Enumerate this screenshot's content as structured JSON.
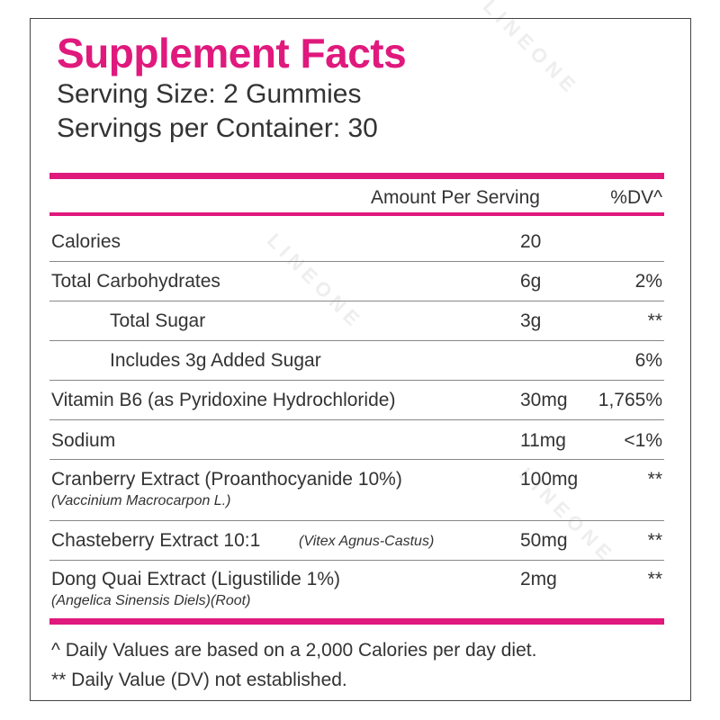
{
  "title": "Supplement Facts",
  "serving_size": "Serving Size: 2 Gummies",
  "servings_per_container": "Servings per Container: 30",
  "header": {
    "amount": "Amount Per Serving",
    "dv": "%DV^"
  },
  "rows": [
    {
      "name": "Calories",
      "amount": "20"
    },
    {
      "name": "Total Carbohydrates",
      "amount": "6g",
      "dv": "2%"
    },
    {
      "name": "Total Sugar",
      "amount": "3g",
      "dv": "**"
    },
    {
      "name": "Includes 3g Added Sugar",
      "dv": "6%"
    },
    {
      "name": "Vitamin B6 (as Pyridoxine Hydrochloride)",
      "amount": "30mg",
      "dv": "1,765%"
    },
    {
      "name": "Sodium",
      "amount": "11mg",
      "dv": "<1%"
    },
    {
      "name": "Cranberry Extract (Proanthocyanide 10%)",
      "latin": "(Vaccinium Macrocarpon L.)",
      "amount": "100mg",
      "dv": "**"
    },
    {
      "name": "Chasteberry Extract 10:1",
      "latin": "(Vitex Agnus-Castus)",
      "amount": "50mg",
      "dv": "**"
    },
    {
      "name": "Dong Quai Extract (Ligustilide 1%)",
      "latin": "(Angelica Sinensis Diels)(Root)",
      "amount": "2mg",
      "dv": "**"
    }
  ],
  "footnotes": [
    "^ Daily Values are based on a 2,000 Calories per day diet.",
    "** Daily Value (DV) not established."
  ],
  "watermark": "LINEONE"
}
